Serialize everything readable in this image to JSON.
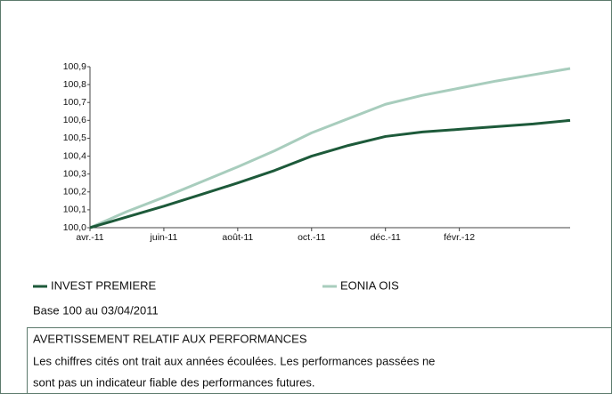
{
  "chart_data": {
    "type": "line",
    "categories": [
      "avr.-11",
      null,
      "juin-11",
      null,
      "août-11",
      null,
      "oct.-11",
      null,
      "déc.-11",
      null,
      "févr.-12",
      null,
      null,
      null
    ],
    "series": [
      {
        "name": "INVEST PREMIERE",
        "color": "#1d5a3a",
        "values": [
          100.0,
          100.06,
          100.12,
          100.185,
          100.25,
          100.32,
          100.4,
          100.46,
          100.51,
          100.535,
          100.55,
          100.565,
          100.58,
          100.6
        ]
      },
      {
        "name": "EONIA OIS",
        "color": "#a8cdbd",
        "values": [
          100.0,
          100.09,
          100.17,
          100.255,
          100.34,
          100.43,
          100.53,
          100.61,
          100.69,
          100.74,
          100.78,
          100.82,
          100.855,
          100.89
        ]
      }
    ],
    "ylim": [
      100.0,
      100.9
    ],
    "yticks": [
      {
        "value": 100.0,
        "label": "100,0"
      },
      {
        "value": 100.1,
        "label": "100,1"
      },
      {
        "value": 100.2,
        "label": "100,2"
      },
      {
        "value": 100.3,
        "label": "100,3"
      },
      {
        "value": 100.4,
        "label": "100,4"
      },
      {
        "value": 100.5,
        "label": "100,5"
      },
      {
        "value": 100.6,
        "label": "100,6"
      },
      {
        "value": 100.7,
        "label": "100,7"
      },
      {
        "value": 100.8,
        "label": "100,8"
      },
      {
        "value": 100.9,
        "label": "100,9"
      }
    ],
    "grid": false,
    "note": "Base 100 au 03/04/2011"
  },
  "warning": {
    "title": "AVERTISSEMENT RELATIF AUX PERFORMANCES",
    "lines": [
      "Les chiffres cités ont trait aux années écoulées. Les performances passées ne",
      "sont pas un indicateur fiable des performances futures."
    ]
  }
}
